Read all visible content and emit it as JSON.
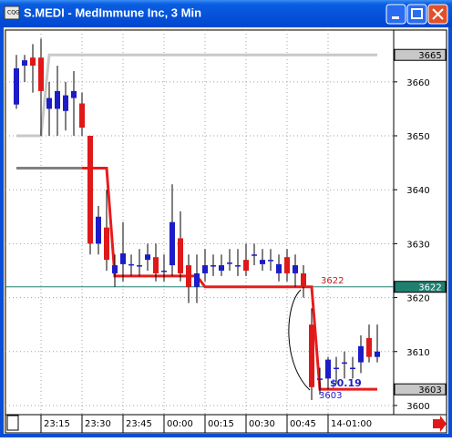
{
  "chart_data": {
    "type": "candlestick",
    "title": "S.MEDI - MedImmune Inc, 3 Min",
    "categories": [
      null,
      null,
      null,
      "23:15",
      null,
      null,
      null,
      null,
      "23:30",
      null,
      null,
      null,
      null,
      "23:45",
      null,
      null,
      null,
      null,
      "00:00",
      null,
      null,
      null,
      null,
      "00:15",
      null,
      null,
      null,
      null,
      "00:30",
      null,
      null,
      null,
      null,
      "00:45",
      null,
      null,
      null,
      null,
      "14-01:00",
      null,
      null,
      null,
      null,
      null,
      null
    ],
    "open": [
      3655.8,
      3663,
      3664.5,
      3664.5,
      3655,
      3655,
      3654.6,
      3657,
      3656,
      3650,
      3630,
      3633,
      3624.5,
      3626.2,
      3626.2,
      3626,
      3627,
      3627.5,
      3625,
      3626,
      3631,
      3626,
      3622,
      3624.5,
      3626,
      3625,
      3626.5,
      3626,
      3627,
      3628,
      3626.2,
      3627,
      3624.5,
      3627.5,
      3624.5,
      3624.5,
      3615,
      3605,
      3605,
      3607,
      3608,
      3607,
      3608,
      3612.5,
      3609
    ],
    "high": [
      3665,
      3665,
      3667,
      3668,
      3660,
      3663,
      3660,
      3662,
      3658,
      3650,
      3637,
      3640,
      3628,
      3634,
      3628,
      3629,
      3630,
      3630,
      3628,
      3641,
      3636,
      3628,
      3628,
      3629,
      3628,
      3628,
      3629,
      3629,
      3630,
      3630,
      3629,
      3629,
      3628,
      3629,
      3628,
      3626,
      3618,
      3607,
      3609,
      3609,
      3610,
      3609,
      3613,
      3615,
      3615
    ],
    "low": [
      3655,
      3660,
      3658,
      3650,
      3650,
      3650,
      3651,
      3650,
      3650,
      3628,
      3628,
      3625,
      3622,
      3623,
      3624,
      3624,
      3625,
      3623,
      3623,
      3624,
      3623,
      3619,
      3619,
      3623,
      3624,
      3624,
      3625,
      3624,
      3624,
      3626,
      3625,
      3625,
      3623,
      3623,
      3622,
      3620,
      3601,
      3602,
      3603,
      3604,
      3605,
      3605,
      3606,
      3608,
      3608
    ],
    "close": [
      3662.5,
      3664,
      3663,
      3658.3,
      3657,
      3658.3,
      3657.5,
      3658.3,
      3651.5,
      3630,
      3635,
      3627,
      3626,
      3628.2,
      3626.2,
      3626,
      3628,
      3624.5,
      3625,
      3634,
      3624.5,
      3622,
      3624.5,
      3626,
      3626,
      3626,
      3626.5,
      3626,
      3625,
      3628,
      3627,
      3627,
      3626.2,
      3624.5,
      3626,
      3622,
      3603.4,
      3605,
      3608.5,
      3607,
      3608,
      3607,
      3611,
      3609,
      3610
    ],
    "up_color": "#1c1cc8",
    "down_color": "#e01818",
    "lines": [
      {
        "color": "#c8c8c8",
        "values": [
          3650,
          3650,
          3650,
          3650,
          3665,
          3665,
          3665,
          3665,
          3665,
          3665,
          3665,
          3665,
          3665,
          3665,
          3665,
          3665,
          3665,
          3665,
          3665,
          3665,
          3665,
          3665,
          3665,
          3665,
          3665,
          3665,
          3665,
          3665,
          3665,
          3665,
          3665,
          3665,
          3665,
          3665,
          3665,
          3665,
          3665,
          3665,
          3665,
          3665,
          3665,
          3665,
          3665,
          3665,
          3665
        ]
      },
      {
        "color": "#808080",
        "values": [
          3644,
          3644,
          3644,
          3644,
          3644,
          3644,
          3644,
          3644,
          3644,
          null,
          null,
          null,
          null,
          null,
          null,
          null,
          null,
          null,
          null,
          null,
          null,
          null,
          null,
          null,
          null,
          null,
          null,
          null,
          null,
          null,
          null,
          null,
          null,
          null,
          null,
          null,
          null,
          null,
          null,
          null,
          null,
          null,
          null,
          null,
          null
        ]
      },
      {
        "color": "#e81c1c",
        "values": [
          null,
          null,
          null,
          null,
          null,
          null,
          null,
          null,
          3644,
          3644,
          3644,
          3644,
          3624,
          3624,
          3624,
          3624,
          3624,
          3624,
          3624,
          3624,
          3624,
          3624,
          3624,
          3622,
          3622,
          3622,
          3622,
          3622,
          3622,
          3622,
          3622,
          3622,
          3622,
          3622,
          3622,
          3622,
          3622,
          3603,
          3603,
          3603,
          3603,
          3603,
          3603,
          3603,
          3603
        ]
      }
    ],
    "hline": {
      "value": 3622,
      "color": "#208070"
    },
    "price_markers": [
      {
        "value": 3665,
        "color": "#c8c8c8",
        "text_color": "#000000"
      },
      {
        "value": 3622,
        "color": "#208070",
        "text_color": "#ffffff"
      },
      {
        "value": 3603,
        "color": "#c8c8c8",
        "text_color": "#000000"
      }
    ],
    "annotations": [
      "3622",
      "$0.19",
      "3603"
    ],
    "ylim": [
      3598.3,
      3669.6
    ],
    "yticks": [
      3600,
      3610,
      3620,
      3630,
      3640,
      3650,
      3660
    ],
    "grid": true
  }
}
